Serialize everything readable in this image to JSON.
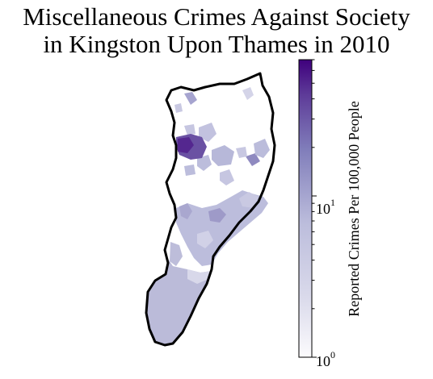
{
  "title": {
    "line1": "Miscellaneous Crimes Against Society",
    "line2": "in Kingston Upon Thames in 2010"
  },
  "colorbar": {
    "label": "Reported Crimes Per 100,000 People",
    "scale": "log",
    "range": [
      1,
      70
    ],
    "tick_labels": [
      {
        "base": "10",
        "exp": "0",
        "value": 1
      },
      {
        "base": "10",
        "exp": "1",
        "value": 10
      }
    ],
    "colormap": "Purples",
    "colors": {
      "low": "#fcfbfd",
      "mid": "#bcbddc",
      "high": "#3f007d"
    }
  },
  "map": {
    "region": "Kingston Upon Thames",
    "boundary_color": "#000000",
    "no_data_color": "#ffffff"
  }
}
